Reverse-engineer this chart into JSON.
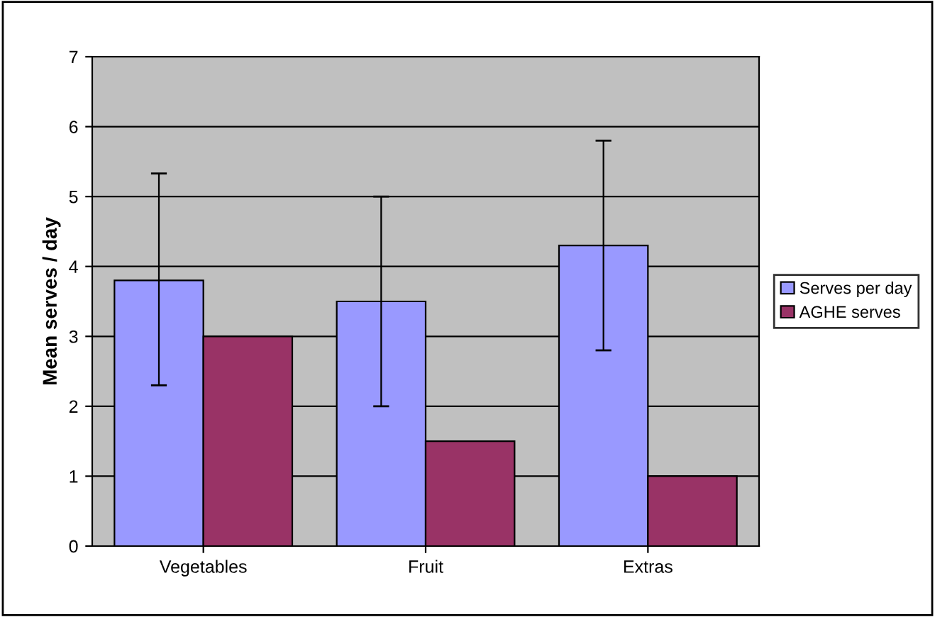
{
  "chart_data": {
    "type": "bar",
    "ylabel": "Mean serves / day",
    "categories": [
      "Vegetables",
      "Fruit",
      "Extras"
    ],
    "series": [
      {
        "name": "Serves per day",
        "color": "#9999ff",
        "values": [
          3.8,
          3.5,
          4.3
        ],
        "errors": [
          [
            2.3,
            5.33
          ],
          [
            2.0,
            5.0
          ],
          [
            2.8,
            5.8
          ]
        ]
      },
      {
        "name": "AGHE serves",
        "color": "#993366",
        "values": [
          3.0,
          1.5,
          1.0
        ]
      }
    ],
    "ylim": [
      0,
      7
    ],
    "yticks": [
      0,
      1,
      2,
      3,
      4,
      5,
      6,
      7
    ],
    "grid": "y",
    "legend": "right"
  }
}
